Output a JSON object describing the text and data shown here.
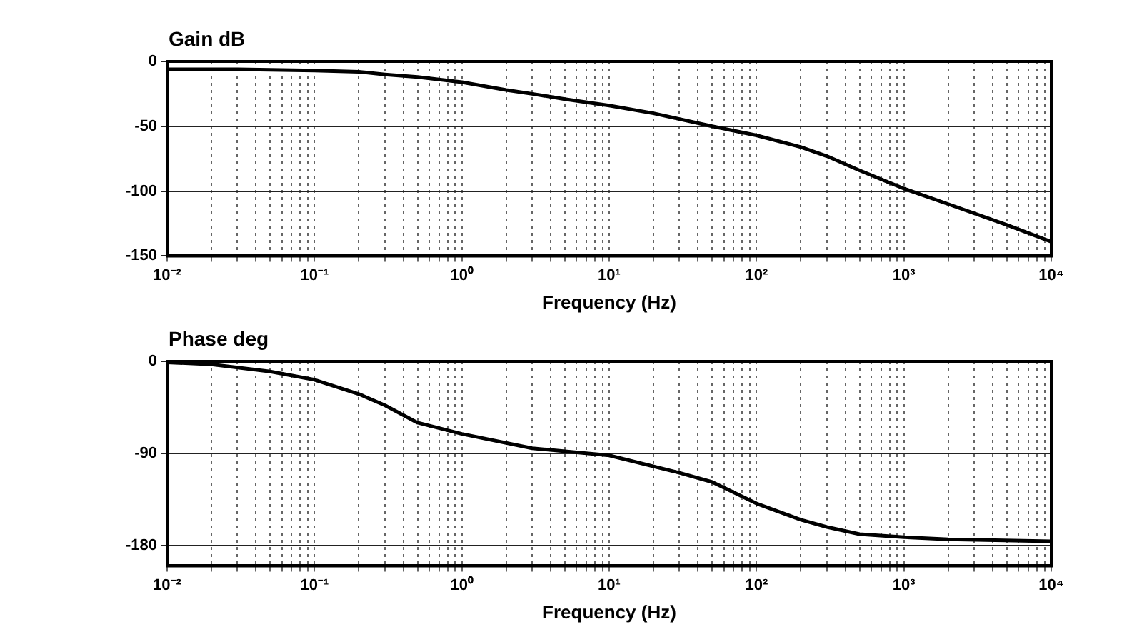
{
  "chart_data": [
    {
      "type": "line",
      "title": "Gain dB",
      "xlabel": "Frequency (Hz)",
      "log": "x",
      "grid": true,
      "legend": false,
      "marker": "none",
      "line_style": "solid",
      "xlim": [
        0.01,
        10000
      ],
      "xticks": [
        {
          "value": 0.01,
          "label": "10⁻²"
        },
        {
          "value": 0.02,
          "label": null
        },
        {
          "value": 0.03,
          "label": null
        },
        {
          "value": 0.04,
          "label": null
        },
        {
          "value": 0.05,
          "label": null
        },
        {
          "value": 0.06,
          "label": null
        },
        {
          "value": 0.07,
          "label": null
        },
        {
          "value": 0.08,
          "label": null
        },
        {
          "value": 0.09,
          "label": null
        },
        {
          "value": 0.1,
          "label": "10⁻¹"
        },
        {
          "value": 0.2,
          "label": null
        },
        {
          "value": 0.3,
          "label": null
        },
        {
          "value": 0.4,
          "label": null
        },
        {
          "value": 0.5,
          "label": null
        },
        {
          "value": 0.6,
          "label": null
        },
        {
          "value": 0.7,
          "label": null
        },
        {
          "value": 0.8,
          "label": null
        },
        {
          "value": 0.9,
          "label": null
        },
        {
          "value": 1,
          "label": "10⁰"
        },
        {
          "value": 2,
          "label": null
        },
        {
          "value": 3,
          "label": null
        },
        {
          "value": 4,
          "label": null
        },
        {
          "value": 5,
          "label": null
        },
        {
          "value": 6,
          "label": null
        },
        {
          "value": 7,
          "label": null
        },
        {
          "value": 8,
          "label": null
        },
        {
          "value": 9,
          "label": null
        },
        {
          "value": 10,
          "label": "10¹"
        },
        {
          "value": 20,
          "label": null
        },
        {
          "value": 30,
          "label": null
        },
        {
          "value": 40,
          "label": null
        },
        {
          "value": 50,
          "label": null
        },
        {
          "value": 60,
          "label": null
        },
        {
          "value": 70,
          "label": null
        },
        {
          "value": 80,
          "label": null
        },
        {
          "value": 90,
          "label": null
        },
        {
          "value": 100,
          "label": "10²"
        },
        {
          "value": 200,
          "label": null
        },
        {
          "value": 300,
          "label": null
        },
        {
          "value": 400,
          "label": null
        },
        {
          "value": 500,
          "label": null
        },
        {
          "value": 600,
          "label": null
        },
        {
          "value": 700,
          "label": null
        },
        {
          "value": 800,
          "label": null
        },
        {
          "value": 900,
          "label": null
        },
        {
          "value": 1000,
          "label": "10³"
        },
        {
          "value": 2000,
          "label": null
        },
        {
          "value": 3000,
          "label": null
        },
        {
          "value": 4000,
          "label": null
        },
        {
          "value": 5000,
          "label": null
        },
        {
          "value": 6000,
          "label": null
        },
        {
          "value": 7000,
          "label": null
        },
        {
          "value": 8000,
          "label": null
        },
        {
          "value": 9000,
          "label": null
        },
        {
          "value": 10000,
          "label": "10⁴"
        }
      ],
      "ylim": [
        -150,
        0
      ],
      "yticks": [
        -150,
        -100,
        -50,
        0
      ],
      "x": [
        0.01,
        0.03,
        0.1,
        0.2,
        0.3,
        0.5,
        1,
        2,
        3,
        5,
        10,
        20,
        50,
        100,
        200,
        300,
        500,
        1000,
        2000,
        5000,
        10000
      ],
      "series": [
        {
          "color": "#000000",
          "values": [
            -6,
            -6,
            -7,
            -8,
            -10,
            -12,
            -16,
            -22,
            -25,
            -29,
            -34,
            -40,
            -50,
            -57,
            -66,
            -73,
            -84,
            -98,
            -110,
            -126,
            -139
          ]
        }
      ]
    },
    {
      "type": "line",
      "title": "Phase deg",
      "xlabel": "Frequency (Hz)",
      "log": "x",
      "grid": true,
      "legend": false,
      "marker": "none",
      "line_style": "solid",
      "xlim": [
        0.01,
        10000
      ],
      "xticks": [
        {
          "value": 0.01,
          "label": "10⁻²"
        },
        {
          "value": 0.02,
          "label": null
        },
        {
          "value": 0.03,
          "label": null
        },
        {
          "value": 0.04,
          "label": null
        },
        {
          "value": 0.05,
          "label": null
        },
        {
          "value": 0.06,
          "label": null
        },
        {
          "value": 0.07,
          "label": null
        },
        {
          "value": 0.08,
          "label": null
        },
        {
          "value": 0.09,
          "label": null
        },
        {
          "value": 0.1,
          "label": "10⁻¹"
        },
        {
          "value": 0.2,
          "label": null
        },
        {
          "value": 0.3,
          "label": null
        },
        {
          "value": 0.4,
          "label": null
        },
        {
          "value": 0.5,
          "label": null
        },
        {
          "value": 0.6,
          "label": null
        },
        {
          "value": 0.7,
          "label": null
        },
        {
          "value": 0.8,
          "label": null
        },
        {
          "value": 0.9,
          "label": null
        },
        {
          "value": 1,
          "label": "10⁰"
        },
        {
          "value": 2,
          "label": null
        },
        {
          "value": 3,
          "label": null
        },
        {
          "value": 4,
          "label": null
        },
        {
          "value": 5,
          "label": null
        },
        {
          "value": 6,
          "label": null
        },
        {
          "value": 7,
          "label": null
        },
        {
          "value": 8,
          "label": null
        },
        {
          "value": 9,
          "label": null
        },
        {
          "value": 10,
          "label": "10¹"
        },
        {
          "value": 20,
          "label": null
        },
        {
          "value": 30,
          "label": null
        },
        {
          "value": 40,
          "label": null
        },
        {
          "value": 50,
          "label": null
        },
        {
          "value": 60,
          "label": null
        },
        {
          "value": 70,
          "label": null
        },
        {
          "value": 80,
          "label": null
        },
        {
          "value": 90,
          "label": null
        },
        {
          "value": 100,
          "label": "10²"
        },
        {
          "value": 200,
          "label": null
        },
        {
          "value": 300,
          "label": null
        },
        {
          "value": 400,
          "label": null
        },
        {
          "value": 500,
          "label": null
        },
        {
          "value": 600,
          "label": null
        },
        {
          "value": 700,
          "label": null
        },
        {
          "value": 800,
          "label": null
        },
        {
          "value": 900,
          "label": null
        },
        {
          "value": 1000,
          "label": "10³"
        },
        {
          "value": 2000,
          "label": null
        },
        {
          "value": 3000,
          "label": null
        },
        {
          "value": 4000,
          "label": null
        },
        {
          "value": 5000,
          "label": null
        },
        {
          "value": 6000,
          "label": null
        },
        {
          "value": 7000,
          "label": null
        },
        {
          "value": 8000,
          "label": null
        },
        {
          "value": 9000,
          "label": null
        },
        {
          "value": 10000,
          "label": "10⁴"
        }
      ],
      "ylim": [
        -200,
        0
      ],
      "yticks": [
        -180,
        -90,
        0
      ],
      "x": [
        0.01,
        0.02,
        0.05,
        0.1,
        0.2,
        0.3,
        0.5,
        1,
        3,
        10,
        30,
        50,
        100,
        200,
        300,
        500,
        1000,
        2000,
        10000
      ],
      "series": [
        {
          "color": "#000000",
          "values": [
            -1,
            -3,
            -10,
            -18,
            -32,
            -43,
            -60,
            -71,
            -85,
            -92,
            -109,
            -118,
            -139,
            -155,
            -162,
            -169,
            -172,
            -174,
            -176
          ]
        }
      ]
    }
  ]
}
